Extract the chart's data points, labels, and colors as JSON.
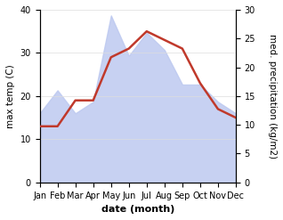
{
  "months": [
    "Jan",
    "Feb",
    "Mar",
    "Apr",
    "May",
    "Jun",
    "Jul",
    "Aug",
    "Sep",
    "Oct",
    "Nov",
    "Dec"
  ],
  "x": [
    0,
    1,
    2,
    3,
    4,
    5,
    6,
    7,
    8,
    9,
    10,
    11
  ],
  "temp": [
    13,
    13,
    19,
    19,
    29,
    31,
    35,
    33,
    31,
    23,
    17,
    15
  ],
  "precip": [
    12,
    16,
    12,
    14,
    29,
    22,
    26,
    23,
    17,
    17,
    14,
    12
  ],
  "precip_fill_color": "#bdc9f0",
  "temp_color": "#c0392b",
  "temp_ylim": [
    0,
    40
  ],
  "precip_ylim": [
    0,
    30
  ],
  "xlabel": "date (month)",
  "ylabel_left": "max temp (C)",
  "ylabel_right": "med. precipitation (kg/m2)",
  "background_color": "#ffffff",
  "temp_linewidth": 1.8,
  "xlabel_fontsize": 8,
  "ylabel_fontsize": 7.5,
  "tick_fontsize": 7
}
